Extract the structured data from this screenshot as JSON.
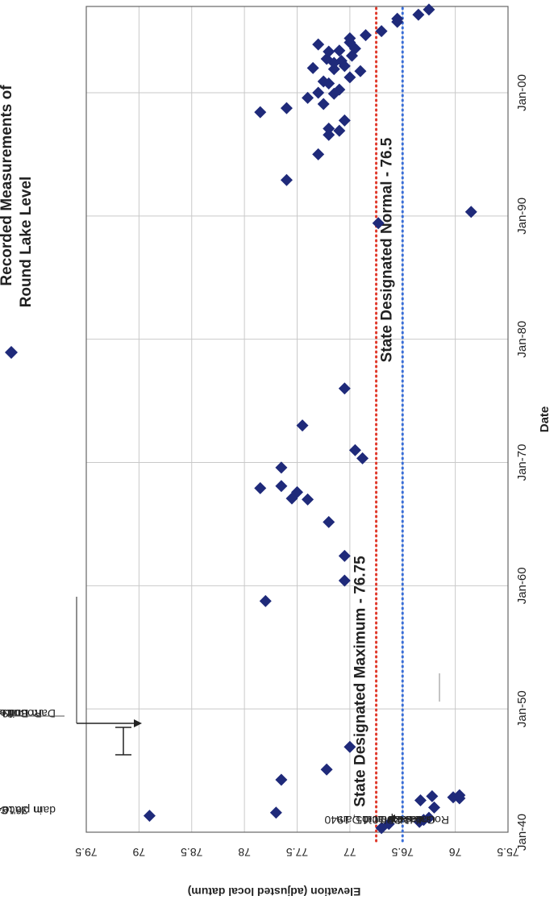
{
  "chart_data": {
    "type": "scatter",
    "xlabel": "Date",
    "ylabel": "Elevation (adjusted local datum)",
    "x_tick_labels": [
      "Jan-40",
      "Jan-50",
      "Jan-60",
      "Jan-70",
      "Jan-80",
      "Jan-90",
      "Jan-00"
    ],
    "y_tick_labels": [
      "75.5",
      "76",
      "76.5",
      "77",
      "77.5",
      "78",
      "78.5",
      "79",
      "79.5"
    ],
    "ylim": [
      75.5,
      79.5
    ],
    "xlim": [
      "1940-01",
      "2007-01"
    ],
    "grid": true,
    "legend_position": "top-right",
    "series": [
      {
        "name": "Recorded Measurements of Round Lake Level",
        "color": "#1f2a7a",
        "marker": "diamond",
        "points": [
          [
            "1940-05",
            76.7
          ],
          [
            "1940-09",
            76.63
          ],
          [
            "1940-11",
            76.34
          ],
          [
            "1941-01",
            76.3
          ],
          [
            "1941-03",
            76.25
          ],
          [
            "1942-01",
            76.2
          ],
          [
            "1942-08",
            76.33
          ],
          [
            "1942-10",
            75.96
          ],
          [
            "1942-11",
            76.02
          ],
          [
            "1942-12",
            76.22
          ],
          [
            "1943-01",
            75.96
          ],
          [
            "1941-05",
            78.9
          ],
          [
            "1941-08",
            77.7
          ],
          [
            "1944-04",
            77.65
          ],
          [
            "1945-02",
            77.22
          ],
          [
            "1946-12",
            77.0
          ],
          [
            "1958-10",
            77.8
          ],
          [
            "1960-06",
            77.05
          ],
          [
            "1962-06",
            77.05
          ],
          [
            "1965-03",
            77.2
          ],
          [
            "1967-01",
            77.4
          ],
          [
            "1967-02",
            77.55
          ],
          [
            "1967-08",
            77.5
          ],
          [
            "1967-12",
            77.85
          ],
          [
            "1968-02",
            77.65
          ],
          [
            "1969-08",
            77.65
          ],
          [
            "1970-05",
            76.88
          ],
          [
            "1971-01",
            76.95
          ],
          [
            "1973-01",
            77.45
          ],
          [
            "1976-01",
            77.05
          ],
          [
            "1989-06",
            76.73
          ],
          [
            "1990-05",
            75.85
          ],
          [
            "1992-12",
            77.6
          ],
          [
            "1995-01",
            77.3
          ],
          [
            "1996-08",
            77.2
          ],
          [
            "1997-02",
            77.2
          ],
          [
            "1996-12",
            77.1
          ],
          [
            "1997-10",
            77.05
          ],
          [
            "1998-06",
            77.85
          ],
          [
            "1998-10",
            77.6
          ],
          [
            "1999-02",
            77.25
          ],
          [
            "1999-08",
            77.4
          ],
          [
            "2000-01",
            77.3
          ],
          [
            "2000-04",
            77.1
          ],
          [
            "2000-10",
            77.2
          ],
          [
            "2001-04",
            77.0
          ],
          [
            "2001-10",
            76.9
          ],
          [
            "2002-01",
            77.35
          ],
          [
            "2002-06",
            77.15
          ],
          [
            "2002-08",
            77.08
          ],
          [
            "2002-10",
            77.22
          ],
          [
            "2003-01",
            76.98
          ],
          [
            "2003-05",
            77.2
          ],
          [
            "2003-06",
            77.1
          ],
          [
            "2003-12",
            77.3
          ],
          [
            "2004-02",
            77.0
          ],
          [
            "2004-06",
            77.0
          ],
          [
            "2005-01",
            76.7
          ],
          [
            "2005-10",
            76.55
          ],
          [
            "2006-01",
            76.55
          ],
          [
            "2006-05",
            76.35
          ],
          [
            "2006-10",
            76.25
          ],
          [
            "2003-08",
            76.95
          ],
          [
            "2002-03",
            77.05
          ],
          [
            "2001-12",
            77.15
          ],
          [
            "2000-12",
            77.25
          ],
          [
            "1999-12",
            77.15
          ],
          [
            "2004-09",
            76.85
          ]
        ]
      }
    ],
    "reference_lines": [
      {
        "label": "State Designated Maximum - 76.75",
        "value": 76.75,
        "color": "#e03a2c"
      },
      {
        "label": "State Designated Normal - 76.5",
        "value": 76.5,
        "color": "#3a6fd8"
      }
    ],
    "annotations": [
      {
        "label_lines": [
          "1947-49 -",
          "36\" Culvert",
          "in place of",
          "dam"
        ],
        "kind": "bracket"
      },
      {
        "label_lines": [
          "1949 -",
          "Current Little",
          "Round Lake",
          "Dam Built"
        ],
        "kind": "arrow"
      },
      {
        "label_lines": [
          "Nov 10-15, 1940",
          "Lake Placid Dam",
          "Gates Open to",
          "Round Lake"
        ],
        "kind": "arrow"
      }
    ]
  }
}
